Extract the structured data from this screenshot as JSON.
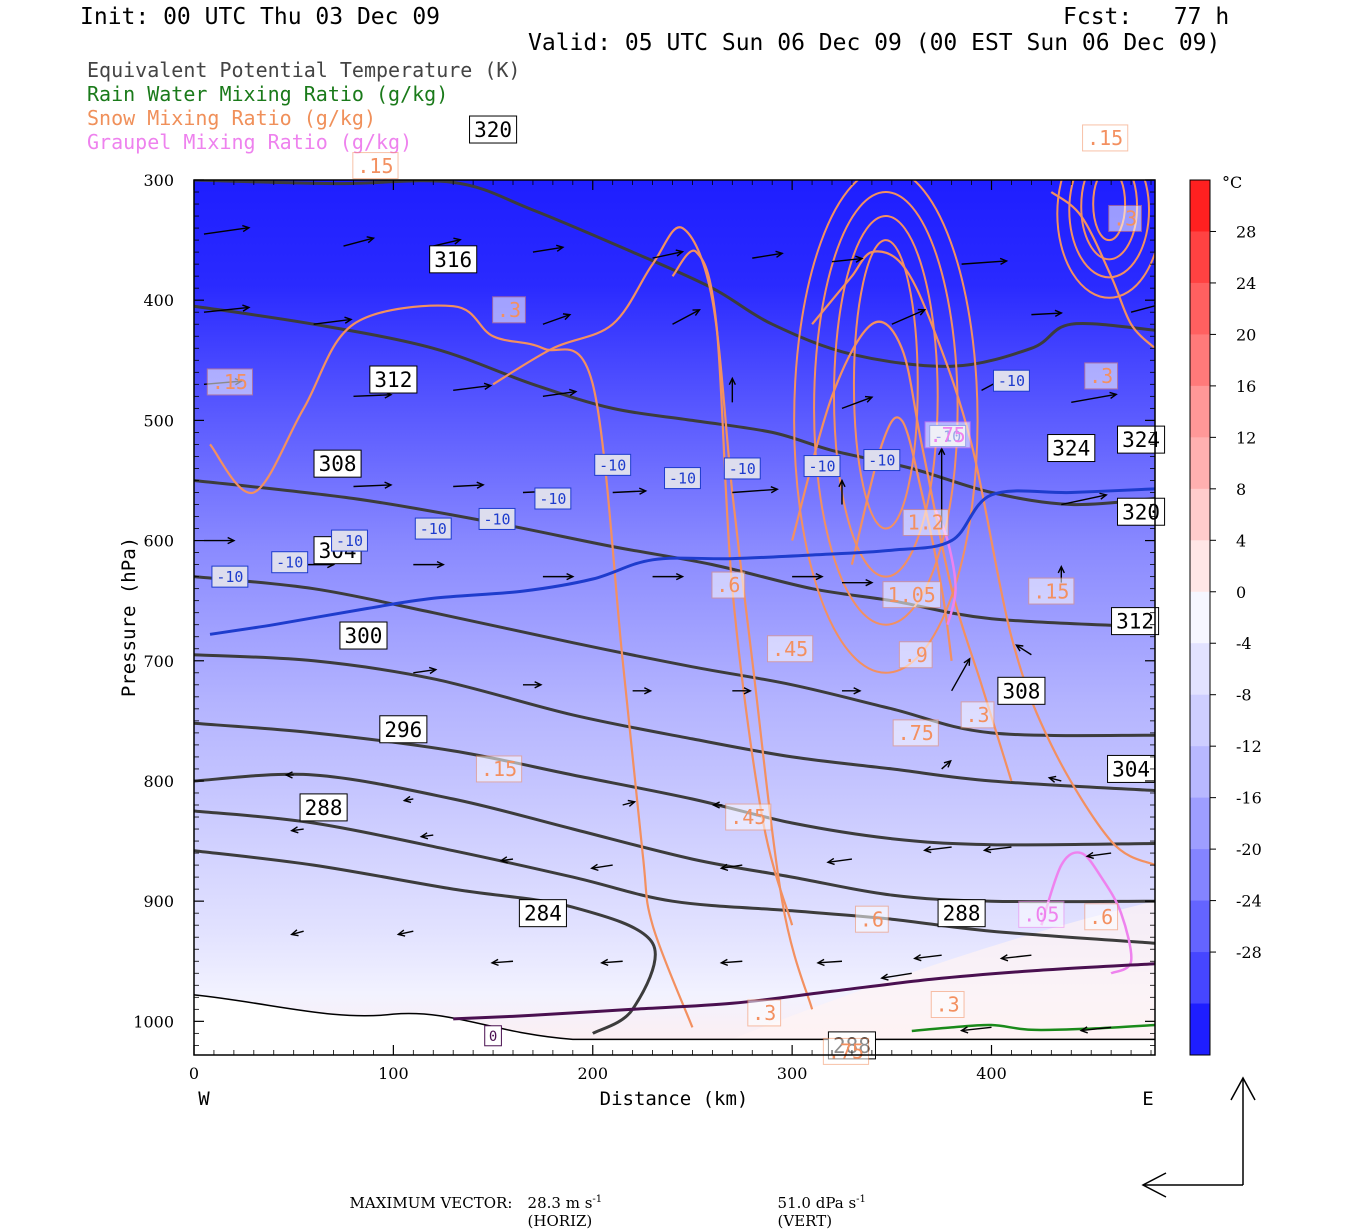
{
  "header": {
    "init": "Init: 00 UTC Thu 03 Dec 09",
    "fcst": "Fcst:   77 h",
    "valid": "Valid: 05 UTC Sun 06 Dec 09 (00 EST Sun 06 Dec 09)"
  },
  "fields": [
    {
      "label": "Equivalent Potential Temperature (K)",
      "color": "#444444"
    },
    {
      "label": "Rain Water Mixing Ratio (g/kg)",
      "color": "#1a7a1a"
    },
    {
      "label": "Snow Mixing Ratio (g/kg)",
      "color": "#f0905a"
    },
    {
      "label": "Graupel Mixing Ratio (g/kg)",
      "color": "#ee82ee"
    }
  ],
  "footer": {
    "max_vector_label": "MAXIMUM VECTOR:",
    "horiz": "28.3 m s",
    "horiz_unit": "(HORIZ)",
    "vert": "51.0 dPa s",
    "vert_unit": "(VERT)",
    "exp": "-1"
  },
  "chart_data": {
    "type": "cross-section",
    "xlabel": "Distance (km)",
    "ylabel": "Pressure (hPa)",
    "x_ticks": [
      0,
      100,
      200,
      300,
      400
    ],
    "x_range": [
      0,
      482
    ],
    "y_ticks": [
      300,
      400,
      500,
      600,
      700,
      800,
      900,
      1000
    ],
    "y_range": [
      300,
      1028
    ],
    "left_end": "W",
    "right_end": "E",
    "colorbar": {
      "unit": "°C",
      "ticks": [
        28,
        24,
        20,
        16,
        12,
        8,
        4,
        0,
        -4,
        -8,
        -12,
        -16,
        -20,
        -24,
        -28
      ],
      "colors": [
        "#ff2020",
        "#ff4242",
        "#ff6060",
        "#ff7a7a",
        "#ff9898",
        "#ffb0b0",
        "#ffcccc",
        "#ffe6e6",
        "#f6f6ff",
        "#e2e2ff",
        "#ceceff",
        "#b8b8ff",
        "#9e9eff",
        "#8484ff",
        "#6464ff",
        "#4646ff",
        "#1e1eff"
      ]
    },
    "theta_e_labels": [
      "320",
      "316",
      "312",
      "308",
      "304",
      "300",
      "296",
      "288",
      "284",
      "288",
      "288",
      "324",
      "324",
      "320",
      "312",
      "308",
      "304"
    ],
    "theta_e_contours": [
      {
        "value": 320,
        "points": [
          [
            0,
            300
          ],
          [
            70,
            303
          ],
          [
            130,
            302
          ],
          [
            170,
            325
          ],
          [
            220,
            360
          ],
          [
            260,
            390
          ],
          [
            290,
            420
          ],
          [
            330,
            445
          ],
          [
            380,
            455
          ],
          [
            420,
            440
          ],
          [
            440,
            420
          ],
          [
            482,
            425
          ]
        ]
      },
      {
        "value": 316,
        "points": [
          [
            0,
            405
          ],
          [
            60,
            420
          ],
          [
            120,
            440
          ],
          [
            170,
            470
          ],
          [
            210,
            490
          ],
          [
            250,
            500
          ],
          [
            290,
            510
          ],
          [
            320,
            525
          ],
          [
            360,
            540
          ],
          [
            400,
            560
          ],
          [
            440,
            570
          ],
          [
            482,
            565
          ]
        ]
      },
      {
        "value": 312,
        "points": [
          [
            0,
            550
          ],
          [
            80,
            565
          ],
          [
            150,
            585
          ],
          [
            210,
            605
          ],
          [
            260,
            620
          ],
          [
            310,
            640
          ],
          [
            350,
            650
          ],
          [
            400,
            665
          ],
          [
            482,
            672
          ]
        ]
      },
      {
        "value": 308,
        "points": [
          [
            0,
            630
          ],
          [
            60,
            640
          ],
          [
            120,
            660
          ],
          [
            190,
            685
          ],
          [
            250,
            705
          ],
          [
            300,
            720
          ],
          [
            350,
            740
          ],
          [
            400,
            760
          ],
          [
            482,
            762
          ]
        ]
      },
      {
        "value": 304,
        "points": [
          [
            0,
            695
          ],
          [
            60,
            700
          ],
          [
            120,
            715
          ],
          [
            190,
            745
          ],
          [
            250,
            765
          ],
          [
            300,
            780
          ],
          [
            350,
            790
          ],
          [
            400,
            800
          ],
          [
            482,
            808
          ]
        ]
      },
      {
        "value": 300,
        "points": [
          [
            0,
            752
          ],
          [
            60,
            760
          ],
          [
            130,
            775
          ],
          [
            190,
            795
          ],
          [
            250,
            815
          ],
          [
            300,
            835
          ],
          [
            350,
            848
          ],
          [
            400,
            853
          ],
          [
            482,
            852
          ]
        ]
      },
      {
        "value": 296,
        "points": [
          [
            0,
            800
          ],
          [
            60,
            795
          ],
          [
            130,
            815
          ],
          [
            190,
            840
          ],
          [
            250,
            865
          ],
          [
            300,
            880
          ],
          [
            350,
            895
          ],
          [
            400,
            900
          ],
          [
            482,
            900
          ]
        ]
      },
      {
        "value": 288,
        "points": [
          [
            0,
            825
          ],
          [
            60,
            835
          ],
          [
            130,
            858
          ],
          [
            190,
            880
          ],
          [
            240,
            900
          ],
          [
            300,
            908
          ],
          [
            350,
            915
          ],
          [
            400,
            925
          ],
          [
            482,
            935
          ]
        ]
      },
      {
        "value": 284,
        "points": [
          [
            0,
            858
          ],
          [
            60,
            870
          ],
          [
            130,
            890
          ],
          [
            190,
            905
          ],
          [
            230,
            935
          ],
          [
            220,
            990
          ],
          [
            200,
            1010
          ]
        ]
      }
    ],
    "isotherm_minus10": [
      [
        8,
        678
      ],
      [
        40,
        670
      ],
      [
        85,
        657
      ],
      [
        120,
        648
      ],
      [
        165,
        642
      ],
      [
        200,
        632
      ],
      [
        230,
        616
      ],
      [
        270,
        615
      ],
      [
        310,
        612
      ],
      [
        350,
        608
      ],
      [
        380,
        600
      ],
      [
        400,
        562
      ],
      [
        440,
        560
      ],
      [
        482,
        557
      ]
    ],
    "isotherm_labels": [
      "-10",
      "-10",
      "-10",
      "-10",
      "-10",
      "-10",
      "-10",
      "-10",
      "-10",
      "-10",
      "-10",
      "-10",
      "-10"
    ],
    "zero_isotherm": [
      [
        130,
        998
      ],
      [
        170,
        995
      ],
      [
        220,
        990
      ],
      [
        270,
        985
      ],
      [
        320,
        975
      ],
      [
        370,
        965
      ],
      [
        420,
        958
      ],
      [
        482,
        952
      ]
    ],
    "zero_label": "0",
    "snow_labels": [
      ".15",
      ".15",
      ".3",
      ".6",
      ".45",
      ".15",
      ".45",
      ".6",
      "1.2",
      "1.05",
      ".9",
      ".75",
      ".3",
      ".15",
      ".3",
      ".3",
      ".3",
      ".75",
      ".6",
      ".3",
      ".15"
    ],
    "snow_contours": [
      {
        "value": 0.15,
        "points": [
          [
            8,
            520
          ],
          [
            30,
            560
          ],
          [
            55,
            490
          ],
          [
            80,
            420
          ],
          [
            130,
            405
          ],
          [
            150,
            430
          ],
          [
            175,
            440
          ],
          [
            200,
            470
          ],
          [
            215,
            700
          ],
          [
            225,
            860
          ],
          [
            230,
            920
          ],
          [
            250,
            1005
          ]
        ]
      },
      {
        "value": 0.3,
        "points": [
          [
            150,
            470
          ],
          [
            180,
            440
          ],
          [
            210,
            420
          ],
          [
            230,
            370
          ],
          [
            245,
            340
          ],
          [
            260,
            400
          ],
          [
            270,
            560
          ],
          [
            280,
            700
          ],
          [
            295,
            900
          ],
          [
            310,
            990
          ]
        ]
      },
      {
        "value": 0.6,
        "points": [
          [
            240,
            380
          ],
          [
            252,
            360
          ],
          [
            262,
            420
          ],
          [
            270,
            640
          ],
          [
            285,
            830
          ],
          [
            300,
            920
          ]
        ]
      },
      {
        "value": 0.15,
        "points": [
          [
            310,
            420
          ],
          [
            320,
            400
          ],
          [
            330,
            380
          ],
          [
            340,
            360
          ],
          [
            355,
            370
          ],
          [
            370,
            420
          ],
          [
            390,
            520
          ],
          [
            410,
            680
          ],
          [
            430,
            770
          ],
          [
            460,
            850
          ],
          [
            482,
            870
          ]
        ]
      },
      {
        "value": 0.45,
        "points": [
          [
            300,
            600
          ],
          [
            320,
            480
          ],
          [
            340,
            420
          ],
          [
            355,
            440
          ],
          [
            365,
            520
          ],
          [
            380,
            640
          ],
          [
            395,
            720
          ],
          [
            410,
            800
          ]
        ]
      },
      {
        "value": 0.9,
        "points": [
          [
            330,
            620
          ],
          [
            345,
            520
          ],
          [
            355,
            500
          ],
          [
            365,
            560
          ],
          [
            375,
            640
          ],
          [
            380,
            700
          ]
        ]
      },
      {
        "value": 0.3,
        "points": [
          [
            430,
            310
          ],
          [
            445,
            330
          ],
          [
            460,
            380
          ],
          [
            470,
            420
          ],
          [
            482,
            440
          ]
        ]
      }
    ],
    "graupel_labels": [
      ".05",
      ".75"
    ],
    "graupel_contours": [
      {
        "value": 0.05,
        "points": [
          [
            372,
            575
          ],
          [
            378,
            600
          ],
          [
            382,
            640
          ],
          [
            378,
            670
          ]
        ]
      },
      {
        "value": 0.05,
        "points": [
          [
            425,
            920
          ],
          [
            435,
            870
          ],
          [
            445,
            860
          ],
          [
            455,
            880
          ],
          [
            465,
            910
          ],
          [
            470,
            950
          ],
          [
            460,
            960
          ]
        ]
      }
    ],
    "rain_contours": [
      {
        "value": 0.05,
        "points": [
          [
            360,
            1008
          ],
          [
            380,
            1005
          ],
          [
            400,
            1003
          ],
          [
            420,
            1007
          ],
          [
            450,
            1006
          ],
          [
            482,
            1003
          ]
        ]
      }
    ]
  }
}
